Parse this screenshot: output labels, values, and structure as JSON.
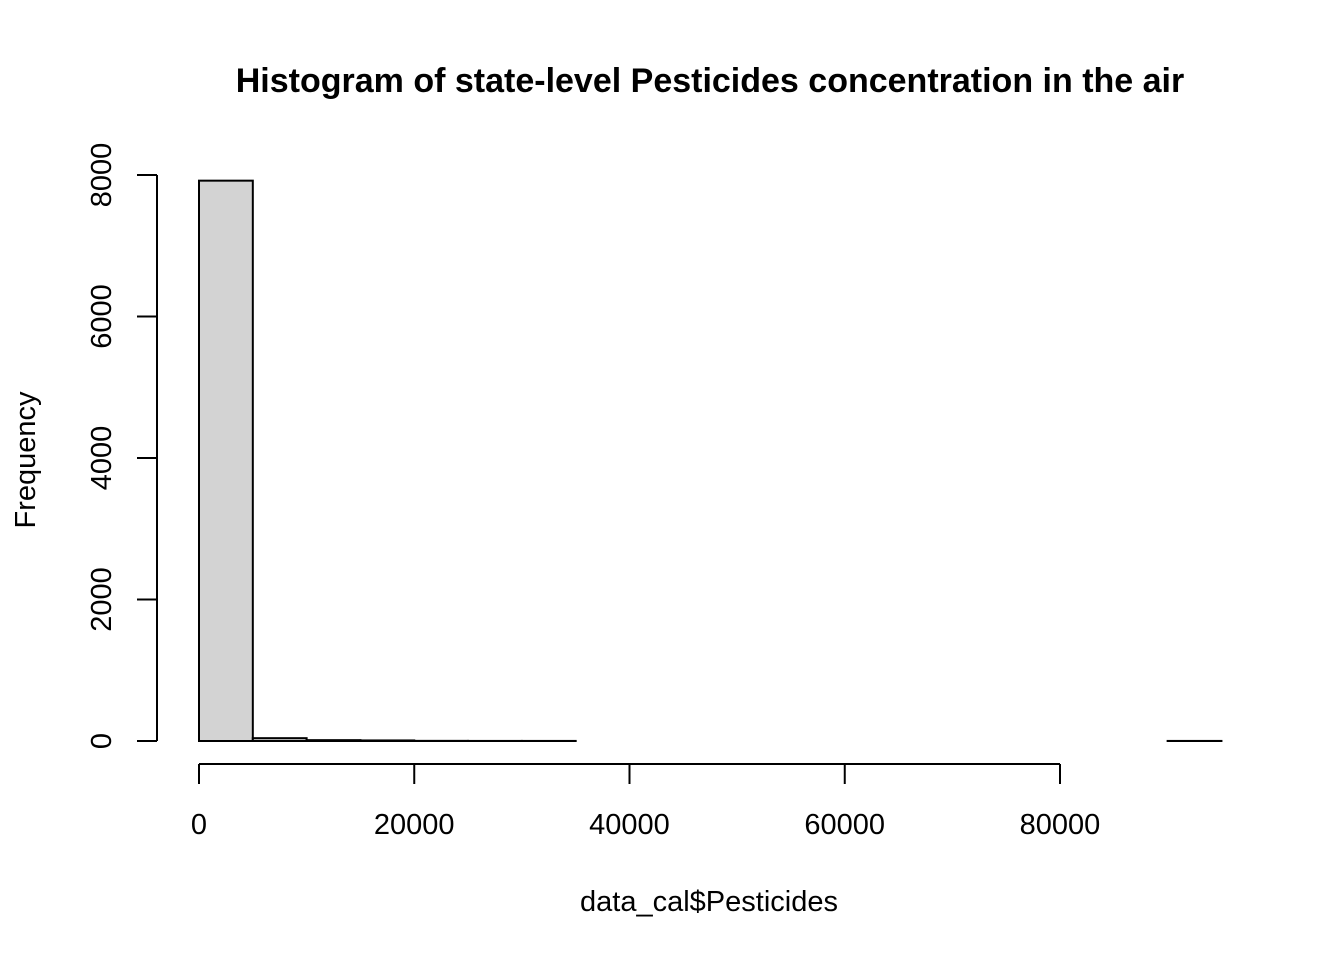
{
  "chart_data": {
    "type": "bar",
    "title": "Histogram of state-level Pesticides concentration in the air",
    "xlabel": "data_cal$Pesticides",
    "ylabel": "Frequency",
    "bin_width": 5000,
    "bins": [
      {
        "start": 0,
        "end": 5000,
        "count": 7920
      },
      {
        "start": 5000,
        "end": 10000,
        "count": 40
      },
      {
        "start": 10000,
        "end": 15000,
        "count": 12
      },
      {
        "start": 15000,
        "end": 20000,
        "count": 8
      },
      {
        "start": 20000,
        "end": 25000,
        "count": 2
      },
      {
        "start": 25000,
        "end": 30000,
        "count": 1
      },
      {
        "start": 30000,
        "end": 35000,
        "count": 1
      },
      {
        "start": 35000,
        "end": 40000,
        "count": 0
      },
      {
        "start": 40000,
        "end": 45000,
        "count": 0
      },
      {
        "start": 45000,
        "end": 50000,
        "count": 0
      },
      {
        "start": 50000,
        "end": 55000,
        "count": 0
      },
      {
        "start": 55000,
        "end": 60000,
        "count": 0
      },
      {
        "start": 60000,
        "end": 65000,
        "count": 0
      },
      {
        "start": 65000,
        "end": 70000,
        "count": 0
      },
      {
        "start": 70000,
        "end": 75000,
        "count": 0
      },
      {
        "start": 75000,
        "end": 80000,
        "count": 0
      },
      {
        "start": 80000,
        "end": 85000,
        "count": 0
      },
      {
        "start": 85000,
        "end": 90000,
        "count": 0
      },
      {
        "start": 90000,
        "end": 95000,
        "count": 1
      }
    ],
    "xlim": [
      0,
      95000
    ],
    "ylim": [
      0,
      8000
    ],
    "x_ticks": [
      0,
      20000,
      40000,
      60000,
      80000
    ],
    "y_ticks": [
      0,
      2000,
      4000,
      6000,
      8000
    ],
    "x_tick_labels": [
      "0",
      "20000",
      "40000",
      "60000",
      "80000"
    ],
    "y_tick_labels": [
      "0",
      "2000",
      "4000",
      "6000",
      "8000"
    ],
    "bar_fill": "#d3d3d3",
    "bar_stroke": "#000000",
    "grid": false,
    "legend": "none"
  }
}
